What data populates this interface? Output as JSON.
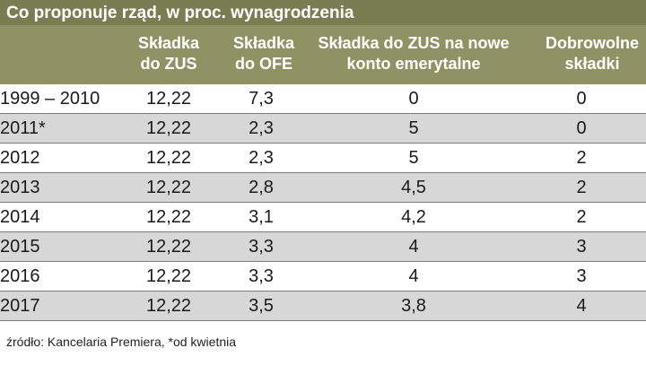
{
  "title": "Co proponuje rząd, w proc. wynagrodzenia",
  "colors": {
    "title_bg": "#7a7c52",
    "header_bg": "#909264",
    "alt_row_bg": "#d7d7d7",
    "header_text": "#ffffff"
  },
  "chart_data": {
    "type": "table",
    "title": "Co proponuje rząd, w proc. wynagrodzenia",
    "columns": [
      {
        "line1": "",
        "line2": ""
      },
      {
        "line1": "Składka",
        "line2": "do ZUS"
      },
      {
        "line1": "Składka",
        "line2": "do OFE"
      },
      {
        "line1": "Składka do ZUS na nowe",
        "line2": "konto emerytalne"
      },
      {
        "line1": "Dobrowolne",
        "line2": "składki"
      }
    ],
    "rows": [
      {
        "year": "1999 – 2010",
        "zus": "12,22",
        "ofe": "7,3",
        "nowe_konto": "0",
        "dobrowolne": "0"
      },
      {
        "year": "2011*",
        "zus": "12,22",
        "ofe": "2,3",
        "nowe_konto": "5",
        "dobrowolne": "0"
      },
      {
        "year": "2012",
        "zus": "12,22",
        "ofe": "2,3",
        "nowe_konto": "5",
        "dobrowolne": "2"
      },
      {
        "year": "2013",
        "zus": "12,22",
        "ofe": "2,8",
        "nowe_konto": "4,5",
        "dobrowolne": "2"
      },
      {
        "year": "2014",
        "zus": "12,22",
        "ofe": "3,1",
        "nowe_konto": "4,2",
        "dobrowolne": "2"
      },
      {
        "year": "2015",
        "zus": "12,22",
        "ofe": "3,3",
        "nowe_konto": "4",
        "dobrowolne": "3"
      },
      {
        "year": "2016",
        "zus": "12,22",
        "ofe": "3,3",
        "nowe_konto": "4",
        "dobrowolne": "3"
      },
      {
        "year": "2017",
        "zus": "12,22",
        "ofe": "3,5",
        "nowe_konto": "3,8",
        "dobrowolne": "4"
      }
    ]
  },
  "source": "źródło: Kancelaria Premiera, *od kwietnia"
}
